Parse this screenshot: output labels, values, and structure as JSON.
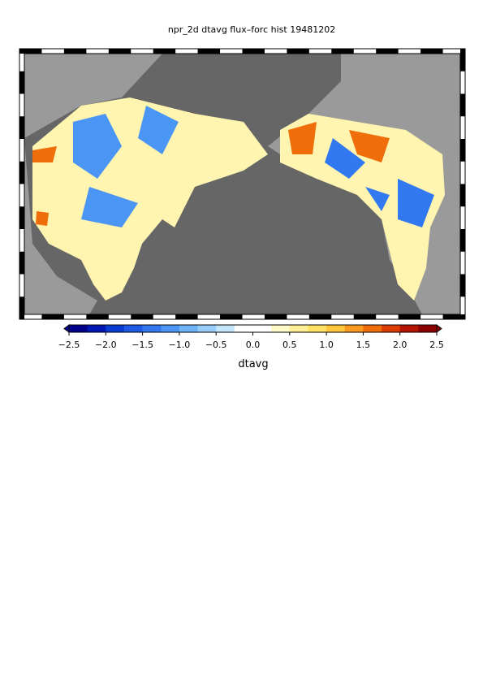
{
  "chart_data": {
    "type": "map",
    "title": "npr_2d dtavg flux–forc hist 19481202",
    "colorbar": {
      "label": "dtavg",
      "lim": [
        -2.5,
        2.5
      ],
      "ticks": [
        {
          "value": -2.5,
          "label": "−2.5"
        },
        {
          "value": -2,
          "label": "−2.0"
        },
        {
          "value": -1.5,
          "label": "−1.5"
        },
        {
          "value": -1,
          "label": "−1.0"
        },
        {
          "value": -0.5,
          "label": "−0.5"
        },
        {
          "value": 0,
          "label": "0.0"
        },
        {
          "value": 0.5,
          "label": "0.5"
        },
        {
          "value": 1,
          "label": "1.0"
        },
        {
          "value": 1.5,
          "label": "1.5"
        },
        {
          "value": 2,
          "label": "2.0"
        },
        {
          "value": 2.5,
          "label": "2.5"
        }
      ],
      "colors": [
        "#00008c",
        "#0018b4",
        "#0a3cd2",
        "#1e5ae6",
        "#3278f0",
        "#4b96f5",
        "#6eb4fa",
        "#96cdfa",
        "#c3e6fa",
        "#ffffff",
        "#ffffff",
        "#fffac8",
        "#fff096",
        "#ffe164",
        "#ffc83c",
        "#fa9b1e",
        "#f06e0a",
        "#dc3c00",
        "#b41400",
        "#8c0000"
      ]
    }
  }
}
